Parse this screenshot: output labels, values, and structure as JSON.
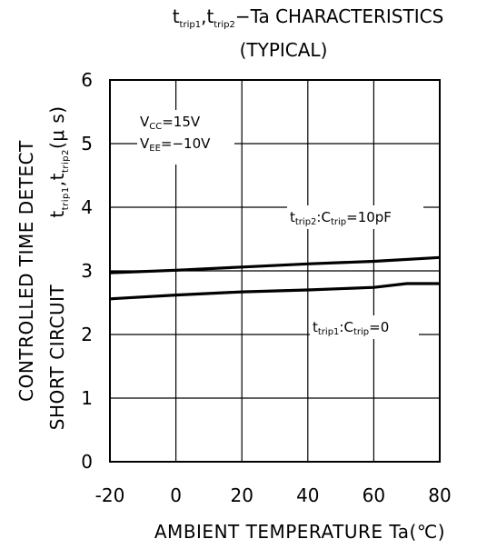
{
  "chart_data": {
    "type": "line",
    "title_parts": {
      "t1": "t",
      "t1_sub": "trip1",
      "sep": ",",
      "t2": "t",
      "t2_sub": "trip2",
      "rest": "−Ta  CHARACTERISTICS"
    },
    "subtitle": "(TYPICAL)",
    "xlabel": "AMBIENT  TEMPERATURE  Ta(℃)",
    "ylabel": {
      "line1": "CONTROLLED  TIME  DETECT",
      "line2": "SHORT  CIRCUIT",
      "sym_t1": "t",
      "sym_t1_sub": "trip1",
      "sym_sep": ",",
      "sym_t2": "t",
      "sym_t2_sub": "trip2",
      "sym_unit": "(μ s)"
    },
    "xlim": [
      -20,
      80
    ],
    "ylim": [
      0,
      6
    ],
    "x_ticks": [
      "-20",
      "0",
      "20",
      "40",
      "60",
      "80"
    ],
    "x_tick_values": [
      -20,
      0,
      20,
      40,
      60,
      80
    ],
    "y_ticks": [
      "0",
      "1",
      "2",
      "3",
      "4",
      "5",
      "6"
    ],
    "y_tick_values": [
      0,
      1,
      2,
      3,
      4,
      5,
      6
    ],
    "grid": true,
    "conditions": {
      "vcc_main": "V",
      "vcc_sub": "CC",
      "vcc_val": "=15V",
      "vee_main": "V",
      "vee_sub": "EE",
      "vee_val": "=−10V"
    },
    "series": [
      {
        "name": "t_trip2 : C_trip=10pF",
        "label_parts": {
          "t": "t",
          "t_sub": "trip2",
          "mid": ":C",
          "c_sub": "trip",
          "val": "=10pF"
        },
        "x": [
          -20,
          0,
          20,
          40,
          60,
          80
        ],
        "y": [
          2.97,
          3.01,
          3.06,
          3.11,
          3.15,
          3.21
        ]
      },
      {
        "name": "t_trip1 : C_trip=0",
        "label_parts": {
          "t": "t",
          "t_sub": "trip1",
          "mid": ":C",
          "c_sub": "trip",
          "val": "=0"
        },
        "x": [
          -20,
          0,
          20,
          40,
          60,
          70,
          80
        ],
        "y": [
          2.56,
          2.62,
          2.67,
          2.7,
          2.74,
          2.8,
          2.8
        ]
      }
    ]
  }
}
